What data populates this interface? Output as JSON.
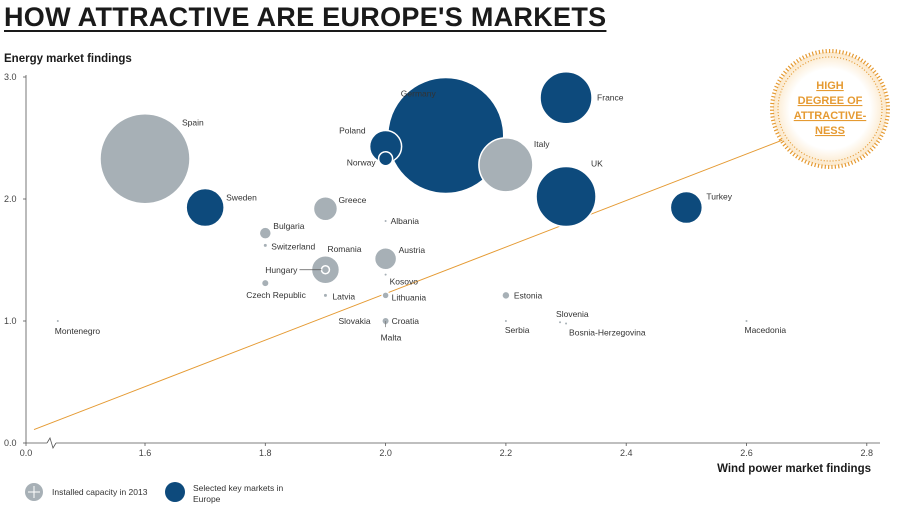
{
  "title": "HOW ATTRACTIVE ARE EUROPE'S MARKETS",
  "colors": {
    "selected": "#0d4a7c",
    "installed": "#a7b0b6",
    "accent": "#e59a32"
  },
  "chart_data": {
    "type": "scatter",
    "variant": "bubble",
    "title": "HOW ATTRACTIVE ARE EUROPE'S MARKETS",
    "xlabel": "Wind power market findings",
    "ylabel": "Energy market findings",
    "xlim": [
      0.0,
      2.8
    ],
    "ylim": [
      0.0,
      3.0
    ],
    "x_axis_break": true,
    "xticks": [
      "0.0",
      "1.6",
      "1.8",
      "2.0",
      "2.2",
      "2.4",
      "2.6",
      "2.8"
    ],
    "yticks": [
      "0.0",
      "1.0",
      "2.0",
      "3.0"
    ],
    "grid": false,
    "bubble_size_meaning": "Installed capacity in 2013",
    "legend": [
      {
        "key": "installed",
        "label": "Installed capacity in 2013"
      },
      {
        "key": "selected",
        "label": "Selected key markets in Europe"
      }
    ],
    "annotation": "HIGH DEGREE OF ATTRACTIVE-NESS",
    "trend_line": {
      "from": [
        0.0,
        0.11
      ],
      "to": [
        2.7,
        2.55
      ]
    },
    "points": [
      {
        "name": "Spain",
        "x": 1.6,
        "y": 2.33,
        "r": 45,
        "group": "installed"
      },
      {
        "name": "Sweden",
        "x": 1.7,
        "y": 1.93,
        "r": 19,
        "group": "selected"
      },
      {
        "name": "Germany",
        "x": 2.1,
        "y": 2.52,
        "r": 58,
        "group": "selected"
      },
      {
        "name": "France",
        "x": 2.3,
        "y": 2.83,
        "r": 26,
        "group": "selected"
      },
      {
        "name": "Poland",
        "x": 2.0,
        "y": 2.43,
        "r": 16,
        "group": "selected"
      },
      {
        "name": "Norway",
        "x": 2.0,
        "y": 2.33,
        "r": 7,
        "group": "selected"
      },
      {
        "name": "Italy",
        "x": 2.2,
        "y": 2.28,
        "r": 27,
        "group": "installed"
      },
      {
        "name": "UK",
        "x": 2.3,
        "y": 2.02,
        "r": 30,
        "group": "selected"
      },
      {
        "name": "Turkey",
        "x": 2.5,
        "y": 1.93,
        "r": 16,
        "group": "selected"
      },
      {
        "name": "Greece",
        "x": 1.9,
        "y": 1.92,
        "r": 12,
        "group": "installed"
      },
      {
        "name": "Bulgaria",
        "x": 1.8,
        "y": 1.72,
        "r": 6,
        "group": "installed"
      },
      {
        "name": "Switzerland",
        "x": 1.8,
        "y": 1.62,
        "r": 1.5,
        "group": "installed"
      },
      {
        "name": "Albania",
        "x": 2.0,
        "y": 1.82,
        "r": 1,
        "group": "installed"
      },
      {
        "name": "Romania",
        "x": 1.9,
        "y": 1.42,
        "r": 14,
        "group": "installed"
      },
      {
        "name": "Hungary",
        "x": 1.9,
        "y": 1.42,
        "r": 4,
        "group": "installed"
      },
      {
        "name": "Austria",
        "x": 2.0,
        "y": 1.51,
        "r": 11,
        "group": "installed"
      },
      {
        "name": "Kosovo",
        "x": 2.0,
        "y": 1.38,
        "r": 1,
        "group": "installed"
      },
      {
        "name": "Czech Republic",
        "x": 1.8,
        "y": 1.31,
        "r": 3,
        "group": "installed"
      },
      {
        "name": "Latvia",
        "x": 1.9,
        "y": 1.21,
        "r": 1.5,
        "group": "installed"
      },
      {
        "name": "Lithuania",
        "x": 2.0,
        "y": 1.21,
        "r": 3.5,
        "group": "installed"
      },
      {
        "name": "Estonia",
        "x": 2.2,
        "y": 1.21,
        "r": 4,
        "group": "installed"
      },
      {
        "name": "Slovakia",
        "x": 2.0,
        "y": 1.0,
        "r": 1,
        "group": "installed"
      },
      {
        "name": "Croatia",
        "x": 2.0,
        "y": 1.0,
        "r": 3,
        "group": "installed"
      },
      {
        "name": "Malta",
        "x": 2.0,
        "y": 0.98,
        "r": 1,
        "group": "installed"
      },
      {
        "name": "Montenegro",
        "x": 1.59,
        "y": 1.0,
        "r": 1,
        "group": "installed"
      },
      {
        "name": "Serbia",
        "x": 2.2,
        "y": 1.0,
        "r": 1,
        "group": "installed"
      },
      {
        "name": "Slovenia",
        "x": 2.29,
        "y": 0.99,
        "r": 1,
        "group": "installed"
      },
      {
        "name": "Bosnia-Herzegovina",
        "x": 2.3,
        "y": 0.98,
        "r": 1,
        "group": "installed"
      },
      {
        "name": "Macedonia",
        "x": 2.6,
        "y": 1.0,
        "r": 1,
        "group": "installed"
      }
    ]
  }
}
